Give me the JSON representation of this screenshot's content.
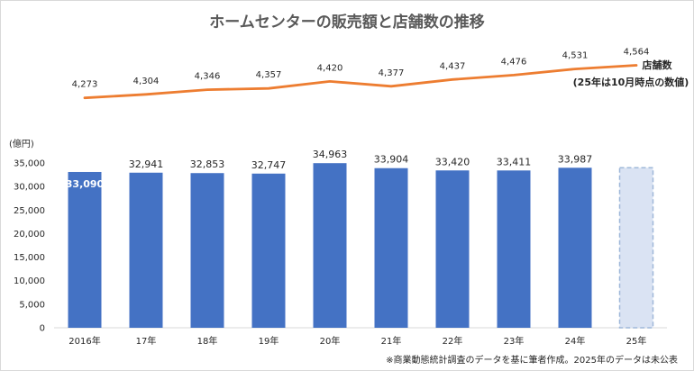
{
  "chart_data": {
    "type": "bar+line",
    "title": "ホームセンターの販売額と店舗数の推移",
    "categories": [
      "2016年",
      "17年",
      "18年",
      "19年",
      "20年",
      "21年",
      "22年",
      "23年",
      "24年",
      "25年"
    ],
    "bar_series": {
      "name": "販売額",
      "unit": "(億円)",
      "values": [
        33090,
        32941,
        32853,
        32747,
        34963,
        33904,
        33420,
        33411,
        33987,
        null
      ],
      "labels": [
        "33,090",
        "32,941",
        "32,853",
        "32,747",
        "34,963",
        "33,904",
        "33,420",
        "33,411",
        "33,987",
        ""
      ],
      "placeholder_value": 33987,
      "color": "#4472c4",
      "placeholder_fill": "#dae3f3",
      "placeholder_stroke": "#9fb8d9"
    },
    "line_series": {
      "name": "店舗数",
      "note": "(25年は10月時点の数値)",
      "values": [
        4273,
        4304,
        4346,
        4357,
        4420,
        4377,
        4437,
        4476,
        4531,
        4564
      ],
      "labels": [
        "4,273",
        "4,304",
        "4,346",
        "4,357",
        "4,420",
        "4,377",
        "4,437",
        "4,476",
        "4,531",
        "4,564"
      ],
      "color": "#ed7d31",
      "range": [
        3700,
        4600
      ]
    },
    "y_axis": {
      "ylim": [
        0,
        35000
      ],
      "ticks": [
        0,
        5000,
        10000,
        15000,
        20000,
        25000,
        30000,
        35000
      ],
      "tick_labels": [
        "0",
        "5,000",
        "10,000",
        "15,000",
        "20,000",
        "25,000",
        "30,000",
        "35,000"
      ],
      "label": "(億円)"
    },
    "footnote": "※商業動態統計調査のデータを基に筆者作成。2025年のデータは未公表"
  }
}
